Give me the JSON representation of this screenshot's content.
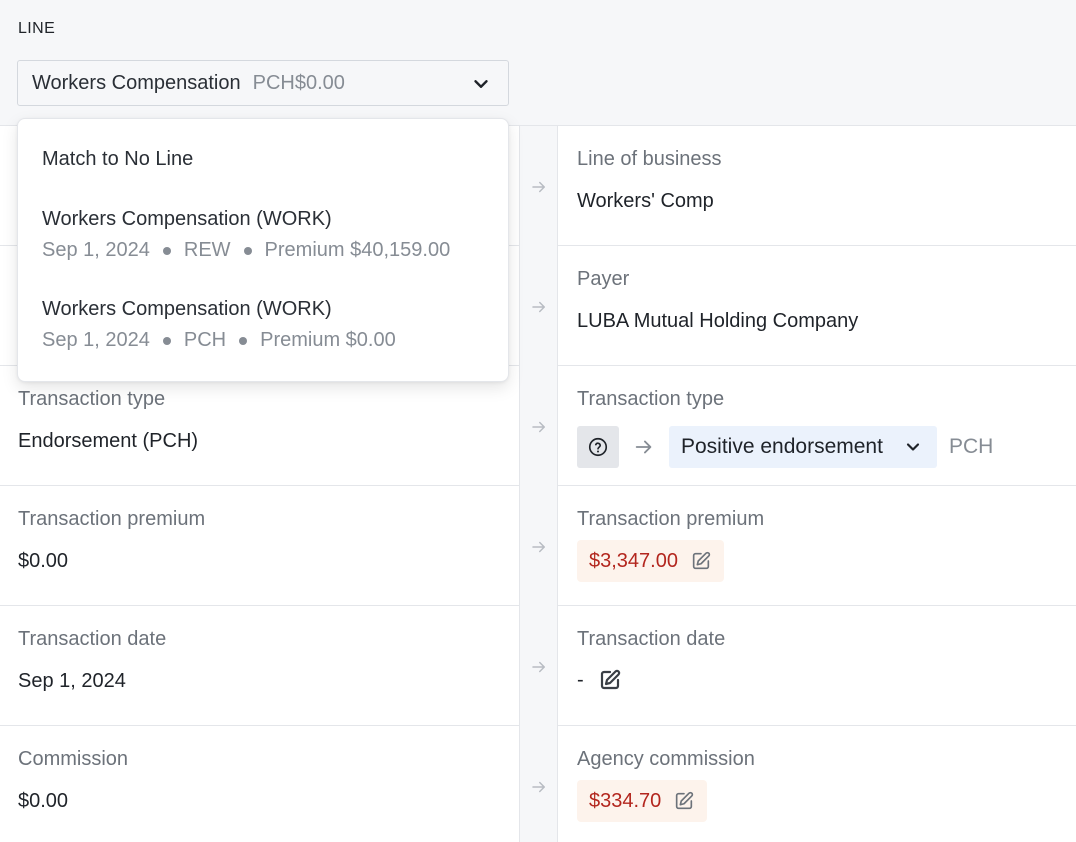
{
  "line": {
    "label": "LINE",
    "selected": "Workers Compensation",
    "selected_sub": "PCH$0.00",
    "options": [
      {
        "title": "Match to No Line"
      },
      {
        "title": "Workers Compensation (WORK)",
        "date": "Sep 1, 2024",
        "code": "REW",
        "premium": "Premium $40,159.00"
      },
      {
        "title": "Workers Compensation (WORK)",
        "date": "Sep 1, 2024",
        "code": "PCH",
        "premium": "Premium $0.00"
      }
    ]
  },
  "left": {
    "transaction_type": {
      "label": "Transaction type",
      "value": "Endorsement (PCH)"
    },
    "transaction_premium": {
      "label": "Transaction premium",
      "value": "$0.00"
    },
    "transaction_date": {
      "label": "Transaction date",
      "value": "Sep 1, 2024"
    },
    "commission": {
      "label": "Commission",
      "value": "$0.00"
    }
  },
  "right": {
    "line_of_business": {
      "label": "Line of business",
      "value": "Workers' Comp"
    },
    "payer": {
      "label": "Payer",
      "value": "LUBA Mutual Holding Company"
    },
    "transaction_type": {
      "label": "Transaction type",
      "value": "Positive endorsement",
      "code": "PCH"
    },
    "transaction_premium": {
      "label": "Transaction premium",
      "value": "$3,347.00"
    },
    "transaction_date": {
      "label": "Transaction date",
      "value": "-"
    },
    "agency_commission": {
      "label": "Agency commission",
      "value": "$334.70"
    }
  },
  "colors": {
    "accent_red": "#b3261e",
    "red_bg": "#fdf3ec",
    "blue_bg": "#ebf2fc",
    "muted": "#6c727a"
  },
  "icons": [
    "chevron-down-icon",
    "arrow-right-icon",
    "question-circle-icon",
    "edit-icon"
  ]
}
